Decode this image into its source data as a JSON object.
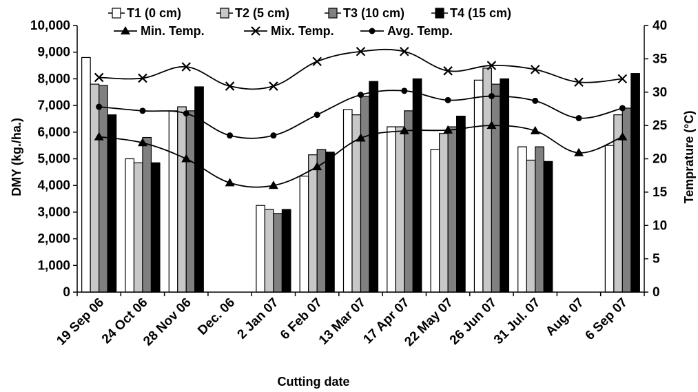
{
  "chart_data": {
    "type": "bar",
    "title": "",
    "xlabel": "Cutting date",
    "ylabel": "DMY (kg./ha.)",
    "y2label": "Temprature (°C)",
    "ylim": [
      0,
      10000
    ],
    "y2lim": [
      0,
      40
    ],
    "yticks": [
      "0",
      "1,000",
      "2,000",
      "3,000",
      "4,000",
      "5,000",
      "6,000",
      "7,000",
      "8,000",
      "9,000",
      "10,000"
    ],
    "y2ticks": [
      "0",
      "5",
      "10",
      "15",
      "20",
      "25",
      "30",
      "35",
      "40"
    ],
    "categories": [
      "19 Sep 06",
      "24 Oct 06",
      "28 Nov 06",
      "Dec. 06",
      "2 Jan 07",
      "6 Feb 07",
      "13 Mar 07",
      "17 Apr 07",
      "22 May 07",
      "26 Jun 07",
      "31 Jul. 07",
      "Aug. 07",
      "6 Sep 07"
    ],
    "bar_series": [
      {
        "name": "T1 (0 cm)",
        "color": "#ffffff",
        "values": [
          8800,
          5000,
          6800,
          null,
          3250,
          4350,
          6850,
          6200,
          5350,
          7950,
          5450,
          null,
          5500
        ]
      },
      {
        "name": "T2 (5 cm)",
        "color": "#c8c8c8",
        "values": [
          7800,
          4850,
          6950,
          null,
          3100,
          5150,
          6650,
          6200,
          5950,
          8400,
          4950,
          null,
          6650
        ]
      },
      {
        "name": "T3 (10 cm)",
        "color": "#808080",
        "values": [
          7750,
          5800,
          6800,
          null,
          2950,
          5350,
          7350,
          6800,
          6200,
          7800,
          5450,
          null,
          6900
        ]
      },
      {
        "name": "T4 (15 cm)",
        "color": "#000000",
        "values": [
          6650,
          4850,
          7700,
          null,
          3100,
          5250,
          7900,
          8000,
          6600,
          8000,
          4900,
          null,
          8200
        ]
      }
    ],
    "line_series": [
      {
        "name": "Min. Temp.",
        "marker": "triangle",
        "values": [
          23.3,
          22.4,
          20.0,
          16.4,
          16.0,
          18.8,
          23.1,
          24.2,
          24.3,
          25.0,
          24.2,
          20.9,
          23.3
        ]
      },
      {
        "name": "Mix. Temp.",
        "marker": "x",
        "values": [
          32.2,
          32.1,
          33.8,
          30.9,
          30.9,
          34.6,
          36.1,
          36.1,
          33.2,
          34.0,
          33.4,
          31.5,
          32.0
        ]
      },
      {
        "name": "Avg. Temp.",
        "marker": "circle",
        "values": [
          27.8,
          27.2,
          26.8,
          23.5,
          23.5,
          26.6,
          29.6,
          30.2,
          28.8,
          29.4,
          28.7,
          26.1,
          27.6
        ]
      }
    ],
    "legend_position": "top",
    "grid": false
  }
}
